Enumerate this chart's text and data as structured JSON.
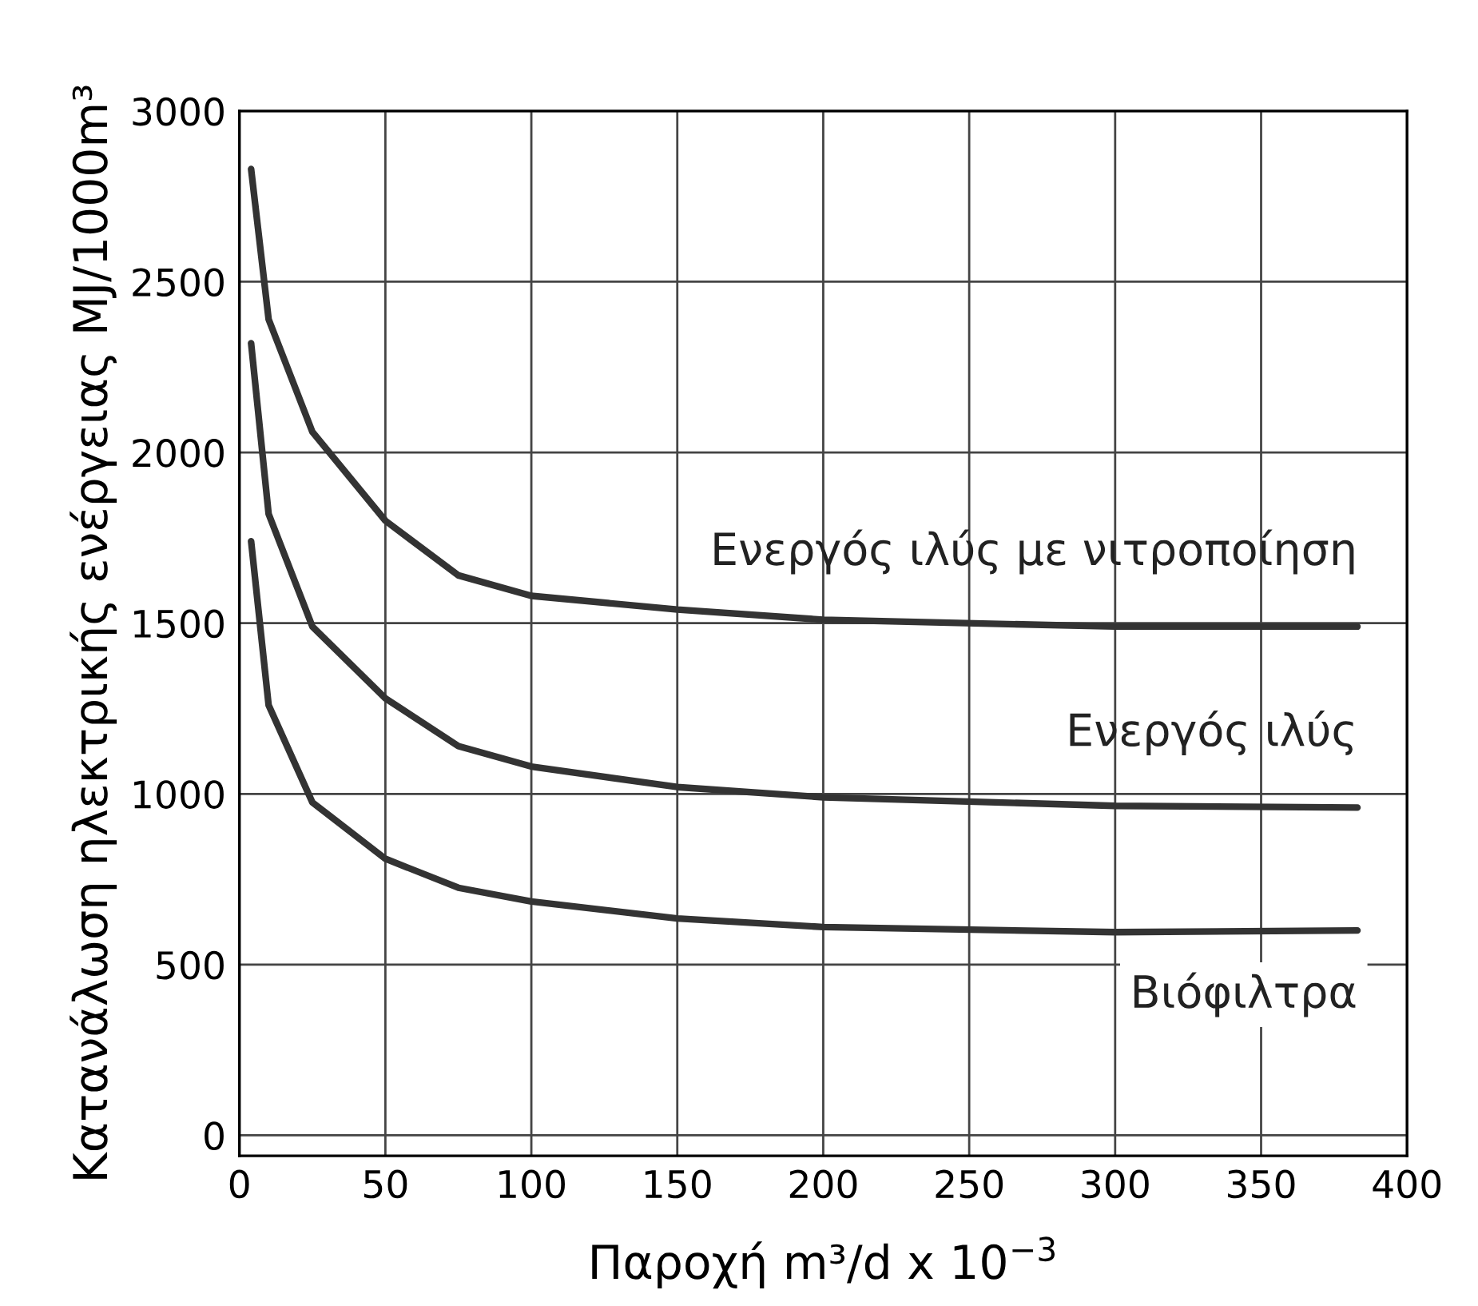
{
  "chart_data": {
    "type": "line",
    "xlabel": "Παροχή m³/d x 10$^{−3}$",
    "ylabel": "Κατανάλωση ηλεκτρικής ενέργειας MJ/1000m³",
    "xlim": [
      0,
      400
    ],
    "ylim": [
      -60,
      3000
    ],
    "xticks": [
      0,
      50,
      100,
      150,
      200,
      250,
      300,
      350,
      400
    ],
    "yticks": [
      0,
      500,
      1000,
      1500,
      2000,
      2500,
      3000
    ],
    "grid": true,
    "legend": false,
    "marker": "none",
    "line_style": "solid",
    "series": [
      {
        "name": "Ενεργός ιλύς με νιτροποίηση",
        "color": "#333333",
        "x": [
          4,
          10,
          25,
          50,
          75,
          100,
          150,
          200,
          300,
          383
        ],
        "values": [
          2830,
          2390,
          2060,
          1800,
          1640,
          1580,
          1540,
          1510,
          1490,
          1490
        ]
      },
      {
        "name": "Ενεργός ιλύς",
        "color": "#333333",
        "x": [
          4,
          10,
          25,
          50,
          75,
          100,
          150,
          200,
          300,
          383
        ],
        "values": [
          2320,
          1820,
          1490,
          1280,
          1140,
          1080,
          1020,
          990,
          965,
          960
        ]
      },
      {
        "name": "Βιόφιλτρα",
        "color": "#333333",
        "x": [
          4,
          10,
          25,
          50,
          75,
          100,
          150,
          200,
          300,
          383
        ],
        "values": [
          1740,
          1260,
          975,
          810,
          725,
          685,
          635,
          610,
          595,
          600
        ]
      }
    ]
  }
}
